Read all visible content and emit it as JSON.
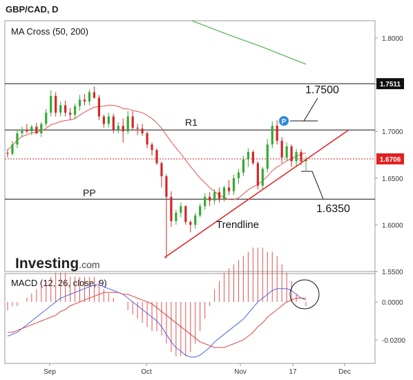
{
  "header": {
    "symbol": "GBP/CAD, D"
  },
  "chart_data": [
    {
      "type": "candlestick",
      "indicator": "MA Cross (50, 200)",
      "ylim": [
        1.55,
        1.82
      ],
      "yticks": [
        "1.8000",
        "1.7500",
        "1.7000",
        "1.6500",
        "1.6000",
        "1.5500"
      ],
      "xticks": [
        "Sep",
        "Oct",
        "Nov",
        "17",
        "Dec"
      ],
      "price_tags": [
        {
          "label": "1.7511",
          "value": 1.7511,
          "style": "dark"
        },
        {
          "label": "1.6706",
          "value": 1.6706,
          "style": "red"
        }
      ],
      "levels": [
        {
          "label": "R1",
          "value": 1.7015
        },
        {
          "label": "PP",
          "value": 1.6275
        },
        {
          "label": "",
          "value": 1.7511
        }
      ],
      "annotations": [
        "1.7500",
        "1.6350",
        "Trendline"
      ],
      "pivot_marker": "P",
      "watermark": {
        "brand": "Investing",
        "suffix": ".com"
      },
      "candles": [
        [
          1.677,
          1.681,
          1.672,
          1.676
        ],
        [
          1.676,
          1.69,
          1.674,
          1.686
        ],
        [
          1.686,
          1.702,
          1.682,
          1.698
        ],
        [
          1.698,
          1.705,
          1.694,
          1.702
        ],
        [
          1.702,
          1.708,
          1.698,
          1.7
        ],
        [
          1.7,
          1.707,
          1.696,
          1.705
        ],
        [
          1.705,
          1.709,
          1.697,
          1.698
        ],
        [
          1.698,
          1.71,
          1.694,
          1.708
        ],
        [
          1.708,
          1.724,
          1.705,
          1.72
        ],
        [
          1.72,
          1.744,
          1.716,
          1.738
        ],
        [
          1.738,
          1.742,
          1.716,
          1.72
        ],
        [
          1.72,
          1.732,
          1.716,
          1.728
        ],
        [
          1.728,
          1.733,
          1.716,
          1.72
        ],
        [
          1.72,
          1.725,
          1.712,
          1.718
        ],
        [
          1.718,
          1.73,
          1.713,
          1.727
        ],
        [
          1.727,
          1.739,
          1.722,
          1.734
        ],
        [
          1.734,
          1.74,
          1.728,
          1.732
        ],
        [
          1.732,
          1.745,
          1.728,
          1.742
        ],
        [
          1.742,
          1.748,
          1.735,
          1.736
        ],
        [
          1.736,
          1.739,
          1.712,
          1.716
        ],
        [
          1.716,
          1.718,
          1.704,
          1.708
        ],
        [
          1.708,
          1.72,
          1.704,
          1.716
        ],
        [
          1.716,
          1.719,
          1.698,
          1.702
        ],
        [
          1.702,
          1.71,
          1.698,
          1.706
        ],
        [
          1.706,
          1.714,
          1.688,
          1.7
        ],
        [
          1.7,
          1.722,
          1.697,
          1.716
        ],
        [
          1.716,
          1.722,
          1.701,
          1.704
        ],
        [
          1.704,
          1.708,
          1.696,
          1.703
        ],
        [
          1.703,
          1.708,
          1.695,
          1.698
        ],
        [
          1.698,
          1.7,
          1.682,
          1.686
        ],
        [
          1.686,
          1.688,
          1.674,
          1.68
        ],
        [
          1.68,
          1.682,
          1.664,
          1.666
        ],
        [
          1.666,
          1.668,
          1.64,
          1.652
        ],
        [
          1.652,
          1.654,
          1.564,
          1.63
        ],
        [
          1.63,
          1.636,
          1.598,
          1.604
        ],
        [
          1.604,
          1.616,
          1.6,
          1.613
        ],
        [
          1.613,
          1.624,
          1.608,
          1.62
        ],
        [
          1.62,
          1.621,
          1.6,
          1.603
        ],
        [
          1.603,
          1.605,
          1.592,
          1.6
        ],
        [
          1.6,
          1.613,
          1.596,
          1.61
        ],
        [
          1.61,
          1.623,
          1.608,
          1.62
        ],
        [
          1.62,
          1.634,
          1.616,
          1.63
        ],
        [
          1.63,
          1.635,
          1.62,
          1.626
        ],
        [
          1.626,
          1.638,
          1.622,
          1.635
        ],
        [
          1.635,
          1.64,
          1.624,
          1.628
        ],
        [
          1.628,
          1.642,
          1.625,
          1.64
        ],
        [
          1.64,
          1.648,
          1.632,
          1.636
        ],
        [
          1.636,
          1.654,
          1.632,
          1.65
        ],
        [
          1.65,
          1.66,
          1.644,
          1.656
        ],
        [
          1.656,
          1.674,
          1.652,
          1.67
        ],
        [
          1.67,
          1.682,
          1.662,
          1.678
        ],
        [
          1.678,
          1.68,
          1.664,
          1.666
        ],
        [
          1.666,
          1.668,
          1.638,
          1.642
        ],
        [
          1.642,
          1.662,
          1.638,
          1.66
        ],
        [
          1.66,
          1.692,
          1.656,
          1.686
        ],
        [
          1.686,
          1.711,
          1.682,
          1.706
        ],
        [
          1.706,
          1.712,
          1.686,
          1.69
        ],
        [
          1.69,
          1.694,
          1.666,
          1.672
        ],
        [
          1.672,
          1.688,
          1.668,
          1.684
        ],
        [
          1.684,
          1.686,
          1.662,
          1.668
        ],
        [
          1.668,
          1.681,
          1.662,
          1.678
        ],
        [
          1.678,
          1.681,
          1.664,
          1.668
        ],
        [
          1.668,
          1.673,
          1.658,
          1.67
        ]
      ]
    },
    {
      "type": "line",
      "indicator": "MACD (12, 26, close, 9)",
      "ylim": [
        -0.032,
        0.012
      ],
      "yticks": [
        "0.0000",
        "-0.0200"
      ],
      "series": [
        {
          "color": "#4a64e0",
          "values": [
            -0.018,
            -0.017,
            -0.016,
            -0.014,
            -0.012,
            -0.01,
            -0.008,
            -0.006,
            -0.004,
            -0.002,
            0.0,
            0.002,
            0.003,
            0.004,
            0.005,
            0.006,
            0.007,
            0.008,
            0.009,
            0.009,
            0.008,
            0.007,
            0.006,
            0.005,
            0.004,
            0.002,
            0.0,
            -0.002,
            -0.004,
            -0.006,
            -0.008,
            -0.01,
            -0.013,
            -0.017,
            -0.021,
            -0.024,
            -0.026,
            -0.028,
            -0.029,
            -0.029,
            -0.028,
            -0.026,
            -0.024,
            -0.021,
            -0.019,
            -0.017,
            -0.015,
            -0.013,
            -0.011,
            -0.009,
            -0.006,
            -0.003,
            0.0,
            0.002,
            0.004,
            0.006,
            0.007,
            0.007,
            0.007,
            0.006,
            0.004,
            0.002,
            0.001
          ]
        },
        {
          "color": "#e04040",
          "values": [
            -0.016,
            -0.016,
            -0.015,
            -0.014,
            -0.013,
            -0.012,
            -0.011,
            -0.01,
            -0.009,
            -0.008,
            -0.007,
            -0.005,
            -0.004,
            -0.002,
            -0.001,
            0.0,
            0.001,
            0.002,
            0.003,
            0.004,
            0.005,
            0.005,
            0.005,
            0.005,
            0.004,
            0.004,
            0.003,
            0.002,
            0.001,
            0.0,
            -0.001,
            -0.003,
            -0.005,
            -0.007,
            -0.009,
            -0.011,
            -0.013,
            -0.015,
            -0.017,
            -0.019,
            -0.021,
            -0.022,
            -0.023,
            -0.024,
            -0.024,
            -0.024,
            -0.023,
            -0.022,
            -0.021,
            -0.02,
            -0.018,
            -0.016,
            -0.013,
            -0.011,
            -0.008,
            -0.006,
            -0.004,
            -0.002,
            0.0,
            0.001,
            0.002,
            0.002,
            0.002
          ]
        }
      ]
    }
  ]
}
